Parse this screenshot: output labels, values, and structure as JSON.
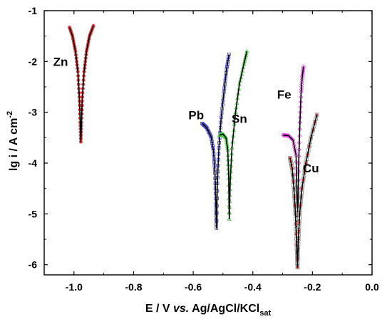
{
  "chart_data": {
    "type": "line",
    "xlabel": {
      "main": "E / V ",
      "italic": "vs.",
      "after": " Ag/AgCl/KCl",
      "sub": "sat"
    },
    "ylabel": {
      "main": "lg i / A cm",
      "sup": "-2"
    },
    "xlim": [
      -1.1,
      0.0
    ],
    "ylim": [
      -6.2,
      -1.0
    ],
    "x_ticks": [
      -1.0,
      -0.8,
      -0.6,
      -0.4,
      -0.2,
      0.0
    ],
    "x_tick_labels": [
      "-1.0",
      "-0.8",
      "-0.6",
      "-0.4",
      "-0.2",
      "0.0"
    ],
    "y_ticks": [
      -1,
      -2,
      -3,
      -4,
      -5,
      -6
    ],
    "y_tick_labels": [
      "-1",
      "-2",
      "-3",
      "-4",
      "-5",
      "-6"
    ],
    "grid": false,
    "series": [
      {
        "name": "Zn",
        "marker_color": "#e03c3c",
        "marker": "circle",
        "label_at": [
          -1.045,
          -2.0
        ],
        "cathodic": [
          [
            -1.015,
            -1.33
          ],
          [
            -1.005,
            -1.5
          ],
          [
            -0.995,
            -1.8
          ],
          [
            -0.987,
            -2.2
          ],
          [
            -0.982,
            -2.7
          ],
          [
            -0.979,
            -3.2
          ],
          [
            -0.977,
            -3.58
          ]
        ],
        "anodic": [
          [
            -0.977,
            -3.58
          ],
          [
            -0.975,
            -3.2
          ],
          [
            -0.972,
            -2.7
          ],
          [
            -0.966,
            -2.2
          ],
          [
            -0.958,
            -1.8
          ],
          [
            -0.948,
            -1.5
          ],
          [
            -0.935,
            -1.3
          ]
        ]
      },
      {
        "name": "Pb",
        "marker_color": "#3c3cc8",
        "marker": "square",
        "label_at": [
          -0.59,
          -3.05
        ],
        "cathodic": [
          [
            -0.57,
            -3.22
          ],
          [
            -0.555,
            -3.3
          ],
          [
            -0.54,
            -3.48
          ],
          [
            -0.532,
            -3.75
          ],
          [
            -0.527,
            -4.2
          ],
          [
            -0.524,
            -4.8
          ],
          [
            -0.522,
            -5.28
          ]
        ],
        "anodic": [
          [
            -0.522,
            -5.28
          ],
          [
            -0.519,
            -4.4
          ],
          [
            -0.514,
            -3.7
          ],
          [
            -0.506,
            -3.1
          ],
          [
            -0.497,
            -2.6
          ],
          [
            -0.488,
            -2.15
          ],
          [
            -0.48,
            -1.86
          ]
        ]
      },
      {
        "name": "Sn",
        "marker_color": "#3cc83c",
        "marker": "triangle",
        "label_at": [
          -0.445,
          -3.12
        ],
        "cathodic": [
          [
            -0.512,
            -3.45
          ],
          [
            -0.5,
            -3.43
          ],
          [
            -0.49,
            -3.5
          ],
          [
            -0.484,
            -3.75
          ],
          [
            -0.481,
            -4.3
          ],
          [
            -0.479,
            -5.1
          ]
        ],
        "anodic": [
          [
            -0.479,
            -5.1
          ],
          [
            -0.476,
            -4.4
          ],
          [
            -0.47,
            -3.7
          ],
          [
            -0.458,
            -3.0
          ],
          [
            -0.445,
            -2.45
          ],
          [
            -0.43,
            -2.05
          ],
          [
            -0.42,
            -1.8
          ]
        ]
      },
      {
        "name": "Fe",
        "marker_color": "#e040e0",
        "marker": "diamond",
        "label_at": [
          -0.295,
          -2.65
        ],
        "cathodic": [
          [
            -0.298,
            -3.45
          ],
          [
            -0.28,
            -3.46
          ],
          [
            -0.265,
            -3.55
          ],
          [
            -0.255,
            -3.85
          ],
          [
            -0.252,
            -4.6
          ],
          [
            -0.251,
            -6.0
          ]
        ],
        "anodic": [
          [
            -0.251,
            -6.0
          ],
          [
            -0.249,
            -5.0
          ],
          [
            -0.246,
            -4.0
          ],
          [
            -0.242,
            -3.2
          ],
          [
            -0.238,
            -2.6
          ],
          [
            -0.234,
            -2.3
          ],
          [
            -0.23,
            -2.1
          ]
        ]
      },
      {
        "name": "Cu",
        "marker_color": "#8a8a8a",
        "marker": "open-square",
        "fit_color": "#e03c3c",
        "label_at": [
          -0.205,
          -4.1
        ],
        "cathodic": [
          [
            -0.275,
            -3.9
          ],
          [
            -0.268,
            -4.1
          ],
          [
            -0.262,
            -4.5
          ],
          [
            -0.257,
            -5.0
          ],
          [
            -0.253,
            -5.6
          ],
          [
            -0.25,
            -6.05
          ]
        ],
        "anodic": [
          [
            -0.25,
            -6.05
          ],
          [
            -0.247,
            -5.5
          ],
          [
            -0.243,
            -5.0
          ],
          [
            -0.235,
            -4.5
          ],
          [
            -0.222,
            -4.0
          ],
          [
            -0.205,
            -3.5
          ],
          [
            -0.185,
            -3.05
          ]
        ]
      }
    ]
  }
}
